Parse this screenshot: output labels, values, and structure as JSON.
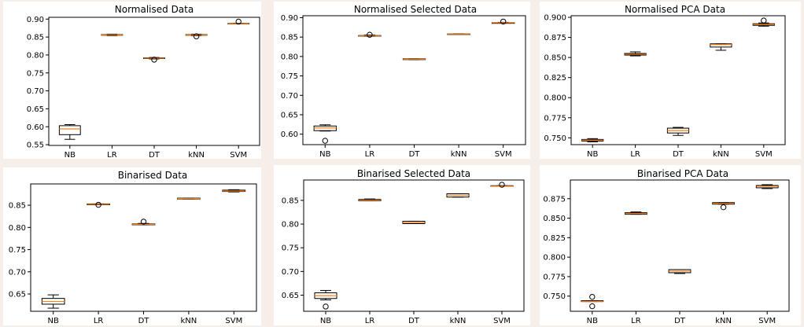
{
  "colors": {
    "box": "#000000",
    "median": "#ff7f0e",
    "background": "#ffffff",
    "page": "#f6efe9"
  },
  "chart_data": [
    {
      "type": "box",
      "title": "Normalised Data",
      "categories": [
        "NB",
        "LR",
        "DT",
        "kNN",
        "SVM"
      ],
      "ylim": [
        0.548,
        0.905
      ],
      "yticks": [
        "0.55",
        "0.60",
        "0.65",
        "0.70",
        "0.75",
        "0.80",
        "0.85",
        "0.90"
      ],
      "boxes": [
        {
          "whislo": 0.565,
          "q1": 0.578,
          "med": 0.594,
          "q3": 0.603,
          "whishi": 0.606,
          "fliers": []
        },
        {
          "whislo": 0.854,
          "q1": 0.855,
          "med": 0.856,
          "q3": 0.857,
          "whishi": 0.858,
          "fliers": []
        },
        {
          "whislo": 0.789,
          "q1": 0.79,
          "med": 0.791,
          "q3": 0.792,
          "whishi": 0.793,
          "fliers": [
            0.787
          ]
        },
        {
          "whislo": 0.854,
          "q1": 0.855,
          "med": 0.856,
          "q3": 0.857,
          "whishi": 0.858,
          "fliers": [
            0.852
          ]
        },
        {
          "whislo": 0.887,
          "q1": 0.887,
          "med": 0.887,
          "q3": 0.888,
          "whishi": 0.888,
          "fliers": [
            0.893
          ]
        }
      ]
    },
    {
      "type": "box",
      "title": "Normalised Selected Data",
      "categories": [
        "NB",
        "LR",
        "DT",
        "kNN",
        "SVM"
      ],
      "ylim": [
        0.573,
        0.905
      ],
      "yticks": [
        "0.60",
        "0.65",
        "0.70",
        "0.75",
        "0.80",
        "0.85",
        "0.90"
      ],
      "boxes": [
        {
          "whislo": 0.608,
          "q1": 0.609,
          "med": 0.616,
          "q3": 0.621,
          "whishi": 0.624,
          "fliers": [
            0.583
          ]
        },
        {
          "whislo": 0.852,
          "q1": 0.853,
          "med": 0.853,
          "q3": 0.854,
          "whishi": 0.855,
          "fliers": [
            0.856
          ]
        },
        {
          "whislo": 0.792,
          "q1": 0.792,
          "med": 0.793,
          "q3": 0.794,
          "whishi": 0.794,
          "fliers": []
        },
        {
          "whislo": 0.857,
          "q1": 0.857,
          "med": 0.857,
          "q3": 0.858,
          "whishi": 0.858,
          "fliers": []
        },
        {
          "whislo": 0.886,
          "q1": 0.886,
          "med": 0.887,
          "q3": 0.887,
          "whishi": 0.888,
          "fliers": [
            0.89
          ]
        }
      ]
    },
    {
      "type": "box",
      "title": "Normalised PCA Data",
      "categories": [
        "NB",
        "LR",
        "DT",
        "kNN",
        "SVM"
      ],
      "ylim": [
        0.7415,
        0.902
      ],
      "yticks": [
        "0.750",
        "0.775",
        "0.800",
        "0.825",
        "0.850",
        "0.875",
        "0.900"
      ],
      "boxes": [
        {
          "whislo": 0.745,
          "q1": 0.746,
          "med": 0.747,
          "q3": 0.748,
          "whishi": 0.749,
          "fliers": []
        },
        {
          "whislo": 0.852,
          "q1": 0.853,
          "med": 0.854,
          "q3": 0.855,
          "whishi": 0.857,
          "fliers": []
        },
        {
          "whislo": 0.753,
          "q1": 0.756,
          "med": 0.759,
          "q3": 0.762,
          "whishi": 0.763,
          "fliers": []
        },
        {
          "whislo": 0.859,
          "q1": 0.863,
          "med": 0.866,
          "q3": 0.867,
          "whishi": 0.867,
          "fliers": []
        },
        {
          "whislo": 0.889,
          "q1": 0.89,
          "med": 0.891,
          "q3": 0.892,
          "whishi": 0.893,
          "fliers": [
            0.896
          ]
        }
      ]
    },
    {
      "type": "box",
      "title": "Binarised Data",
      "categories": [
        "NB",
        "LR",
        "DT",
        "kNN",
        "SVM"
      ],
      "ylim": [
        0.611,
        0.898
      ],
      "yticks": [
        "0.65",
        "0.70",
        "0.75",
        "0.80",
        "0.85"
      ],
      "boxes": [
        {
          "whislo": 0.618,
          "q1": 0.627,
          "med": 0.633,
          "q3": 0.64,
          "whishi": 0.648,
          "fliers": []
        },
        {
          "whislo": 0.851,
          "q1": 0.851,
          "med": 0.852,
          "q3": 0.853,
          "whishi": 0.853,
          "fliers": [
            0.851
          ]
        },
        {
          "whislo": 0.806,
          "q1": 0.806,
          "med": 0.807,
          "q3": 0.808,
          "whishi": 0.809,
          "fliers": [
            0.813
          ]
        },
        {
          "whislo": 0.864,
          "q1": 0.864,
          "med": 0.865,
          "q3": 0.866,
          "whishi": 0.866,
          "fliers": []
        },
        {
          "whislo": 0.88,
          "q1": 0.881,
          "med": 0.882,
          "q3": 0.884,
          "whishi": 0.885,
          "fliers": []
        }
      ]
    },
    {
      "type": "box",
      "title": "Binarised Selected Data",
      "categories": [
        "NB",
        "LR",
        "DT",
        "kNN",
        "SVM"
      ],
      "ylim": [
        0.616,
        0.893
      ],
      "yticks": [
        "0.65",
        "0.70",
        "0.75",
        "0.80",
        "0.85"
      ],
      "boxes": [
        {
          "whislo": 0.64,
          "q1": 0.643,
          "med": 0.649,
          "q3": 0.655,
          "whishi": 0.66,
          "fliers": [
            0.626
          ]
        },
        {
          "whislo": 0.849,
          "q1": 0.849,
          "med": 0.85,
          "q3": 0.852,
          "whishi": 0.853,
          "fliers": []
        },
        {
          "whislo": 0.801,
          "q1": 0.801,
          "med": 0.803,
          "q3": 0.806,
          "whishi": 0.806,
          "fliers": []
        },
        {
          "whislo": 0.857,
          "q1": 0.857,
          "med": 0.861,
          "q3": 0.864,
          "whishi": 0.864,
          "fliers": []
        },
        {
          "whislo": 0.88,
          "q1": 0.88,
          "med": 0.88,
          "q3": 0.881,
          "whishi": 0.881,
          "fliers": [
            0.883
          ]
        }
      ]
    },
    {
      "type": "box",
      "title": "Binarised PCA Data",
      "categories": [
        "NB",
        "LR",
        "DT",
        "kNN",
        "SVM"
      ],
      "ylim": [
        0.7305,
        0.899
      ],
      "yticks": [
        "0.750",
        "0.775",
        "0.800",
        "0.825",
        "0.850",
        "0.875"
      ],
      "boxes": [
        {
          "whislo": 0.743,
          "q1": 0.743,
          "med": 0.743,
          "q3": 0.744,
          "whishi": 0.744,
          "fliers": [
            0.749,
            0.737
          ]
        },
        {
          "whislo": 0.855,
          "q1": 0.855,
          "med": 0.856,
          "q3": 0.857,
          "whishi": 0.858,
          "fliers": []
        },
        {
          "whislo": 0.779,
          "q1": 0.78,
          "med": 0.782,
          "q3": 0.784,
          "whishi": 0.784,
          "fliers": []
        },
        {
          "whislo": 0.868,
          "q1": 0.868,
          "med": 0.869,
          "q3": 0.87,
          "whishi": 0.87,
          "fliers": [
            0.864
          ]
        },
        {
          "whislo": 0.888,
          "q1": 0.889,
          "med": 0.891,
          "q3": 0.892,
          "whishi": 0.893,
          "fliers": []
        }
      ]
    }
  ]
}
